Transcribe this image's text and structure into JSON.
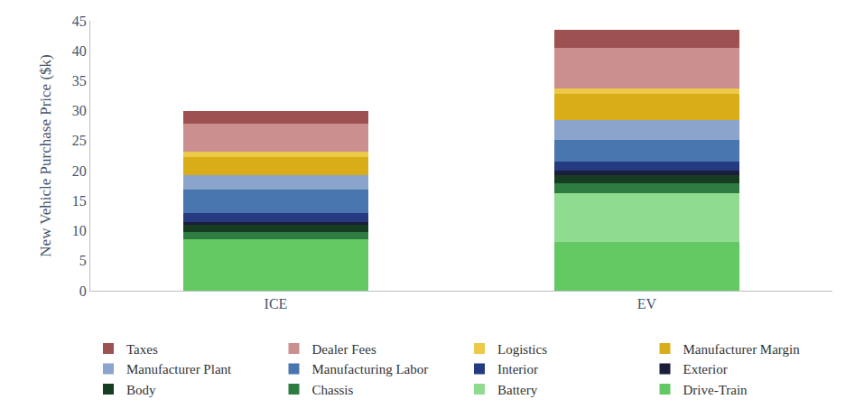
{
  "chart_data": {
    "type": "bar",
    "stacked": true,
    "y_label": "New Vehicle Purchase Price ($k)",
    "categories": [
      "ICE",
      "EV"
    ],
    "ylim": [
      0,
      45
    ],
    "yticks": [
      0,
      5,
      10,
      15,
      20,
      25,
      30,
      35,
      40,
      45
    ],
    "grid": false,
    "legend": "bottom",
    "series": [
      {
        "name": "Drive-Train",
        "color": "#63c963",
        "values": [
          8.6,
          8.1
        ]
      },
      {
        "name": "Battery",
        "color": "#8fdb8f",
        "values": [
          0,
          8.2
        ]
      },
      {
        "name": "Chassis",
        "color": "#2f7c43",
        "values": [
          1.2,
          1.6
        ]
      },
      {
        "name": "Body",
        "color": "#163c22",
        "values": [
          1.2,
          1.4
        ]
      },
      {
        "name": "Exterior",
        "color": "#1b1f3a",
        "values": [
          0.5,
          0.7
        ]
      },
      {
        "name": "Interior",
        "color": "#263a82",
        "values": [
          1.5,
          1.5
        ]
      },
      {
        "name": "Manufacturing Labor",
        "color": "#4a76b0",
        "values": [
          3.9,
          3.7
        ]
      },
      {
        "name": "Manufacturer Plant",
        "color": "#8aa4cb",
        "values": [
          2.4,
          3.3
        ]
      },
      {
        "name": "Manufacturer Margin",
        "color": "#d9ad18",
        "values": [
          3.0,
          4.3
        ]
      },
      {
        "name": "Logistics",
        "color": "#edc949",
        "values": [
          0.9,
          0.9
        ]
      },
      {
        "name": "Dealer Fees",
        "color": "#cc8f8f",
        "values": [
          4.7,
          6.8
        ]
      },
      {
        "name": "Taxes",
        "color": "#9e5151",
        "values": [
          2.1,
          3.0
        ]
      }
    ]
  }
}
